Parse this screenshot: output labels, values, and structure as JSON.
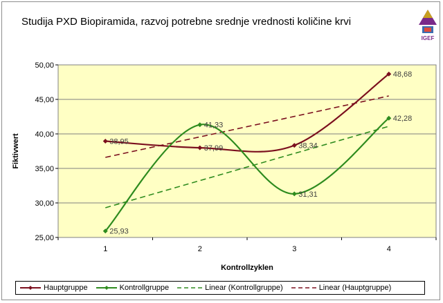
{
  "chart_data": {
    "type": "line",
    "title": "Studija PXD Biopiramida, razvoj potrebne srednje vrednosti količine krvi",
    "xlabel": "Kontrollzyklen",
    "ylabel": "Fiktivwert",
    "x": [
      1,
      2,
      3,
      4
    ],
    "x_tick_labels": [
      "1",
      "2",
      "3",
      "4"
    ],
    "ylim": [
      25,
      50
    ],
    "y_ticks": [
      25,
      30,
      35,
      40,
      45,
      50
    ],
    "y_tick_labels": [
      "25,00",
      "30,00",
      "35,00",
      "40,00",
      "45,00",
      "50,00"
    ],
    "grid": "horizontal",
    "legend_position": "bottom",
    "plot_background": "#FFFFC4",
    "series": [
      {
        "name": "Hauptgruppe",
        "color": "#7B0F1E",
        "values": [
          38.95,
          37.99,
          38.34,
          48.68
        ],
        "labels": [
          "38,95",
          "37,99",
          "38,34",
          "48,68"
        ],
        "style": "smooth"
      },
      {
        "name": "Kontrollgruppe",
        "color": "#2E8B1E",
        "values": [
          25.93,
          41.33,
          31.31,
          42.28
        ],
        "labels": [
          "25,93",
          "41,33",
          "31,31",
          "42,28"
        ],
        "style": "smooth"
      }
    ],
    "trendlines": [
      {
        "name": "Linear (Kontrollgruppe)",
        "color": "#2E8B1E",
        "values": [
          29.3,
          33.1,
          37.0,
          41.1
        ]
      },
      {
        "name": "Linear (Hauptgruppe)",
        "color": "#7B0F1E",
        "values": [
          36.6,
          39.6,
          42.5,
          45.5
        ]
      }
    ]
  },
  "legend": {
    "items": [
      {
        "label": "Hauptgruppe",
        "kind": "marker-line",
        "color": "#7B0F1E"
      },
      {
        "label": "Kontrollgruppe",
        "kind": "marker-line",
        "color": "#2E8B1E"
      },
      {
        "label": "Linear (Kontrollgruppe)",
        "kind": "dashed-line",
        "color": "#2E8B1E"
      },
      {
        "label": "Linear (Hauptgruppe)",
        "kind": "dashed-line",
        "color": "#7B0F1E"
      }
    ]
  },
  "logo": {
    "text": "IGEF",
    "icon": "pyramid-logo-icon"
  }
}
